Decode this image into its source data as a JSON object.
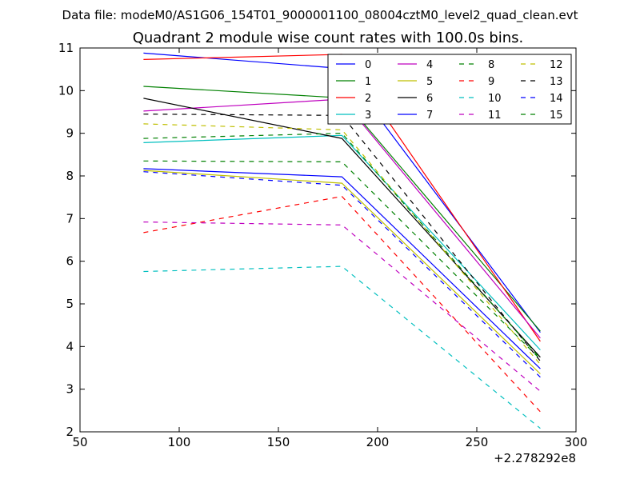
{
  "figure": {
    "suptitle": "Data file: modeM0/AS1G06_154T01_9000001100_08004cztM0_level2_quad_clean.evt"
  },
  "chart_data": {
    "type": "line",
    "title": "Quadrant 2 module wise count rates with 100.0s bins.",
    "xlabel": "",
    "ylabel": "",
    "x_offset_label": "+2.278292e8",
    "xlim": [
      50,
      300
    ],
    "ylim": [
      2,
      11
    ],
    "xticks": [
      50,
      100,
      150,
      200,
      250,
      300
    ],
    "yticks": [
      2,
      3,
      4,
      5,
      6,
      7,
      8,
      9,
      10,
      11
    ],
    "grid": false,
    "legend_position": "top-right",
    "legend_columns": 4,
    "x": [
      82,
      182,
      282
    ],
    "series": [
      {
        "name": "0",
        "color": "#0000ff",
        "dash": "solid",
        "values": [
          10.88,
          10.52,
          4.33
        ]
      },
      {
        "name": "1",
        "color": "#008000",
        "dash": "solid",
        "values": [
          10.1,
          9.83,
          4.36
        ]
      },
      {
        "name": "2",
        "color": "#ff0000",
        "dash": "solid",
        "values": [
          10.73,
          10.85,
          4.12
        ]
      },
      {
        "name": "3",
        "color": "#00bfbf",
        "dash": "solid",
        "values": [
          8.78,
          8.95,
          3.92
        ]
      },
      {
        "name": "4",
        "color": "#bf00bf",
        "dash": "solid",
        "values": [
          9.52,
          9.8,
          4.2
        ]
      },
      {
        "name": "5",
        "color": "#bfbf00",
        "dash": "solid",
        "values": [
          8.13,
          7.83,
          3.36
        ]
      },
      {
        "name": "6",
        "color": "#000000",
        "dash": "solid",
        "values": [
          9.82,
          8.88,
          3.75
        ]
      },
      {
        "name": "7",
        "color": "#0000ff",
        "dash": "solid",
        "values": [
          8.17,
          7.98,
          3.48
        ]
      },
      {
        "name": "8",
        "color": "#008000",
        "dash": "dashed",
        "values": [
          8.35,
          8.33,
          3.7
        ]
      },
      {
        "name": "9",
        "color": "#ff0000",
        "dash": "dashed",
        "values": [
          6.67,
          7.52,
          2.47
        ]
      },
      {
        "name": "10",
        "color": "#00bfbf",
        "dash": "dashed",
        "values": [
          5.76,
          5.88,
          2.08
        ]
      },
      {
        "name": "11",
        "color": "#bf00bf",
        "dash": "dashed",
        "values": [
          6.92,
          6.85,
          2.95
        ]
      },
      {
        "name": "12",
        "color": "#bfbf00",
        "dash": "dashed",
        "values": [
          9.22,
          9.08,
          3.58
        ]
      },
      {
        "name": "13",
        "color": "#000000",
        "dash": "dashed",
        "values": [
          9.45,
          9.42,
          3.66
        ]
      },
      {
        "name": "14",
        "color": "#0000ff",
        "dash": "dashed",
        "values": [
          8.1,
          7.78,
          3.28
        ]
      },
      {
        "name": "15",
        "color": "#008000",
        "dash": "dashed",
        "values": [
          8.88,
          9.0,
          3.72
        ]
      }
    ]
  }
}
